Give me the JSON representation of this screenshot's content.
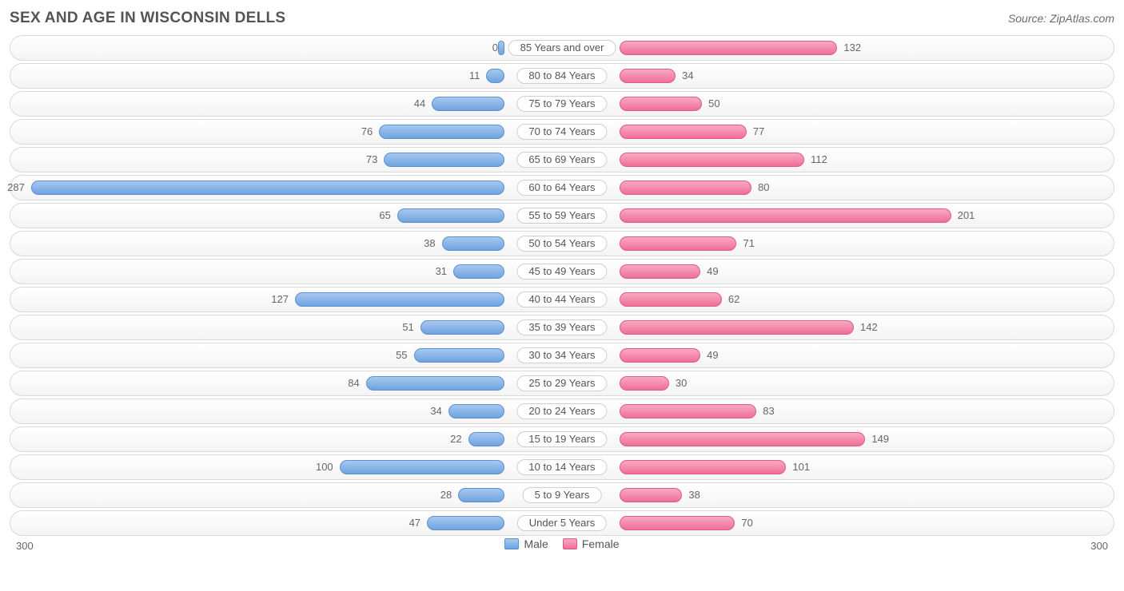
{
  "title": "SEX AND AGE IN WISCONSIN DELLS",
  "source": "Source: ZipAtlas.com",
  "chart": {
    "type": "population-pyramid",
    "axis_max": 300,
    "axis_label_left": "300",
    "axis_label_right": "300",
    "background_color": "#ffffff",
    "row_border_color": "#d9d9d9",
    "row_gradient_top": "#ffffff",
    "row_gradient_bottom": "#f4f4f4",
    "male": {
      "label": "Male",
      "gradient_top": "#a7c8ef",
      "gradient_bottom": "#6fa3e0",
      "border": "#5b90d0"
    },
    "female": {
      "label": "Female",
      "gradient_top": "#f9a9c2",
      "gradient_bottom": "#ef6f99",
      "border": "#e05a88"
    },
    "label_fontsize": 13,
    "title_fontsize": 19,
    "title_color": "#545454",
    "value_color": "#666666",
    "categories": [
      {
        "label": "85 Years and over",
        "male": 0,
        "female": 132
      },
      {
        "label": "80 to 84 Years",
        "male": 11,
        "female": 34
      },
      {
        "label": "75 to 79 Years",
        "male": 44,
        "female": 50
      },
      {
        "label": "70 to 74 Years",
        "male": 76,
        "female": 77
      },
      {
        "label": "65 to 69 Years",
        "male": 73,
        "female": 112
      },
      {
        "label": "60 to 64 Years",
        "male": 287,
        "female": 80
      },
      {
        "label": "55 to 59 Years",
        "male": 65,
        "female": 201
      },
      {
        "label": "50 to 54 Years",
        "male": 38,
        "female": 71
      },
      {
        "label": "45 to 49 Years",
        "male": 31,
        "female": 49
      },
      {
        "label": "40 to 44 Years",
        "male": 127,
        "female": 62
      },
      {
        "label": "35 to 39 Years",
        "male": 51,
        "female": 142
      },
      {
        "label": "30 to 34 Years",
        "male": 55,
        "female": 49
      },
      {
        "label": "25 to 29 Years",
        "male": 84,
        "female": 30
      },
      {
        "label": "20 to 24 Years",
        "male": 34,
        "female": 83
      },
      {
        "label": "15 to 19 Years",
        "male": 22,
        "female": 149
      },
      {
        "label": "10 to 14 Years",
        "male": 100,
        "female": 101
      },
      {
        "label": "5 to 9 Years",
        "male": 28,
        "female": 38
      },
      {
        "label": "Under 5 Years",
        "male": 47,
        "female": 70
      }
    ]
  }
}
